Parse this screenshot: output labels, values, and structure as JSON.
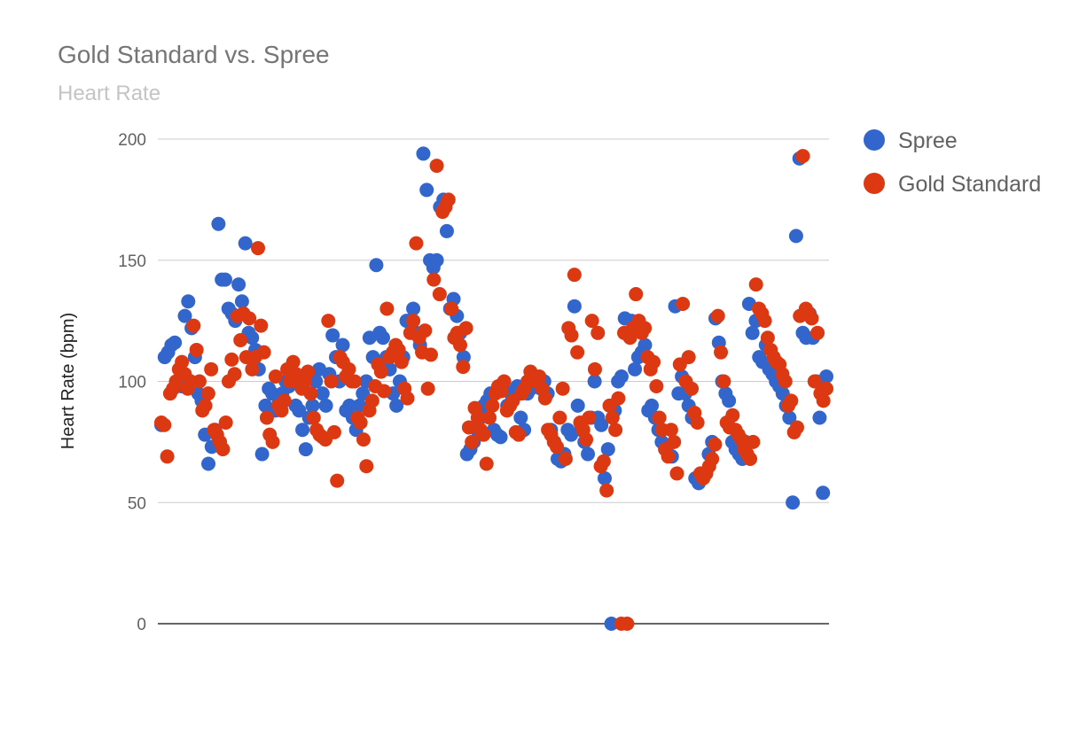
{
  "chart_data": {
    "type": "scatter",
    "title": "Gold Standard vs. Spree",
    "subtitle": "Heart Rate",
    "xlabel": "",
    "ylabel": "Heart Rate (bpm)",
    "ylim": [
      0,
      200
    ],
    "yticks": [
      "0",
      "50",
      "100",
      "150",
      "200"
    ],
    "grid": true,
    "legend_position": "right",
    "x_note": "sample index (no x-axis labels shown)",
    "series": [
      {
        "name": "Spree",
        "color": "#3366cc",
        "values": [
          82,
          110,
          112,
          115,
          116,
          100,
          98,
          127,
          133,
          122,
          110,
          95,
          92,
          78,
          66,
          73,
          80,
          165,
          142,
          142,
          130,
          128,
          125,
          140,
          133,
          157,
          120,
          118,
          113,
          105,
          70,
          90,
          97,
          95,
          88,
          92,
          95,
          100,
          98,
          102,
          90,
          88,
          80,
          72,
          85,
          90,
          100,
          105,
          95,
          90,
          103,
          119,
          110,
          100,
          115,
          88,
          90,
          85,
          80,
          90,
          95,
          100,
          118,
          110,
          148,
          120,
          118,
          110,
          105,
          95,
          90,
          100,
          110,
          125,
          125,
          130,
          120,
          115,
          194,
          179,
          150,
          147,
          150,
          172,
          175,
          162,
          130,
          134,
          127,
          120,
          110,
          70,
          72,
          75,
          80,
          85,
          90,
          92,
          95,
          80,
          78,
          77,
          97,
          90,
          95,
          95,
          98,
          85,
          80,
          95,
          97,
          100,
          98,
          97,
          100,
          95,
          80,
          75,
          68,
          67,
          70,
          80,
          78,
          131,
          90,
          80,
          75,
          70,
          85,
          100,
          85,
          82,
          60,
          72,
          0,
          88,
          100,
          102,
          126,
          120,
          125,
          105,
          110,
          112,
          115,
          88,
          90,
          85,
          80,
          75,
          72,
          70,
          69,
          131,
          95,
          102,
          95,
          90,
          85,
          60,
          58,
          60,
          62,
          70,
          75,
          126,
          116,
          100,
          95,
          92,
          75,
          72,
          70,
          68,
          75,
          132,
          120,
          125,
          110,
          108,
          115,
          105,
          103,
          100,
          98,
          95,
          90,
          85,
          50,
          160,
          192,
          120,
          118,
          128,
          118,
          100,
          85,
          54,
          102
        ]
      },
      {
        "name": "Gold Standard",
        "color": "#dc3912",
        "values": [
          83,
          82,
          69,
          95,
          97,
          100,
          105,
          108,
          103,
          97,
          100,
          123,
          113,
          100,
          88,
          90,
          95,
          105,
          80,
          78,
          75,
          72,
          83,
          100,
          109,
          103,
          127,
          117,
          128,
          110,
          126,
          105,
          110,
          155,
          123,
          112,
          85,
          78,
          75,
          102,
          90,
          88,
          92,
          105,
          100,
          108,
          103,
          100,
          97,
          100,
          104,
          95,
          85,
          80,
          78,
          77,
          76,
          125,
          100,
          79,
          59,
          110,
          108,
          102,
          105,
          100,
          100,
          85,
          83,
          76,
          65,
          88,
          92,
          98,
          107,
          104,
          96,
          130,
          110,
          112,
          115,
          113,
          108,
          97,
          93,
          120,
          125,
          157,
          118,
          112,
          121,
          97,
          111,
          142,
          189,
          136,
          170,
          172,
          175,
          130,
          118,
          120,
          115,
          106,
          122,
          81,
          75,
          89,
          85,
          80,
          78,
          66,
          85,
          90,
          95,
          98,
          96,
          100,
          88,
          90,
          92,
          79,
          78,
          95,
          97,
          100,
          104,
          102,
          100,
          102,
          97,
          93,
          80,
          78,
          75,
          73,
          85,
          97,
          68,
          122,
          119,
          144,
          112,
          83,
          80,
          76,
          85,
          125,
          105,
          120,
          65,
          67,
          55,
          90,
          85,
          80,
          93,
          0,
          120,
          0,
          118,
          122,
          136,
          125,
          120,
          122,
          110,
          105,
          108,
          98,
          85,
          80,
          72,
          69,
          80,
          75,
          62,
          107,
          132,
          100,
          110,
          97,
          87,
          83,
          62,
          60,
          62,
          65,
          68,
          74,
          127,
          112,
          100,
          83,
          81,
          86,
          80,
          78,
          76,
          72,
          70,
          68,
          75,
          140,
          130,
          128,
          125,
          118,
          113,
          110,
          108,
          107,
          103,
          100,
          90,
          92,
          79,
          81,
          127,
          193,
          130,
          128,
          126,
          100,
          120,
          95,
          92,
          97
        ]
      }
    ]
  }
}
